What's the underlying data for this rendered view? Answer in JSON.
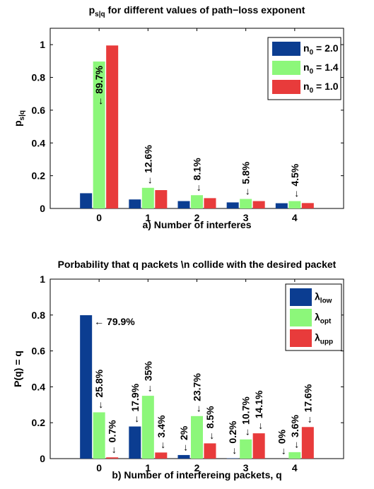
{
  "colors": {
    "blue": "#0b3d91",
    "green": "#8cf77a",
    "red": "#e83b3b"
  },
  "chart_data": [
    {
      "type": "bar",
      "title_main": "p",
      "title_sub": "s|q",
      "title_rest": " for different values of path−loss exponent",
      "xlabel": "a) Number of interferes",
      "ylabel_main": "p",
      "ylabel_sub": "s|q",
      "ylim": [
        0,
        1.1
      ],
      "yticks": [
        "0",
        "0.2",
        "0.4",
        "0.6",
        "0.8",
        "1"
      ],
      "ytick_values": [
        0,
        0.2,
        0.4,
        0.6,
        0.8,
        1
      ],
      "categories": [
        "0",
        "1",
        "2",
        "3",
        "4"
      ],
      "legend_position": "top-right",
      "series": [
        {
          "legend_main": "n",
          "legend_sub": "0",
          "legend_rest": " = 2.0",
          "color": "blue",
          "values": [
            0.093,
            0.055,
            0.045,
            0.037,
            0.032
          ]
        },
        {
          "legend_main": "n",
          "legend_sub": "0",
          "legend_rest": " = 1.4",
          "color": "green",
          "values": [
            0.897,
            0.126,
            0.081,
            0.058,
            0.045
          ]
        },
        {
          "legend_main": "n",
          "legend_sub": "0",
          "legend_rest": " = 1.0",
          "color": "red",
          "values": [
            0.995,
            0.112,
            0.063,
            0.045,
            0.033
          ]
        }
      ],
      "annotations": [
        {
          "category": 0,
          "series": 1,
          "text": "← 89.7%",
          "inside": true
        },
        {
          "category": 1,
          "series": 1,
          "text": "← 12.6%"
        },
        {
          "category": 2,
          "series": 1,
          "text": "← 8.1%"
        },
        {
          "category": 3,
          "series": 1,
          "text": "← 5.8%"
        },
        {
          "category": 4,
          "series": 1,
          "text": "← 4.5%"
        }
      ]
    },
    {
      "type": "bar",
      "title_main": "Porbability that q packets \\n collide with the desired packet",
      "xlabel": "b) Number of interfereing packets, q",
      "ylabel_main": "P(q) = q",
      "ylim": [
        0,
        1
      ],
      "yticks": [
        "0",
        "0.2",
        "0.4",
        "0.6",
        "0.8",
        "1"
      ],
      "ytick_values": [
        0,
        0.2,
        0.4,
        0.6,
        0.8,
        1
      ],
      "categories": [
        "0",
        "1",
        "2",
        "3",
        "4"
      ],
      "legend_position": "top-right",
      "series": [
        {
          "legend_main": "λ",
          "legend_sub": "low",
          "color": "blue",
          "values": [
            0.799,
            0.179,
            0.02,
            0.002,
            0.0
          ]
        },
        {
          "legend_main": "λ",
          "legend_sub": "opt",
          "color": "green",
          "values": [
            0.258,
            0.35,
            0.237,
            0.107,
            0.036
          ]
        },
        {
          "legend_main": "λ",
          "legend_sub": "upp",
          "color": "red",
          "values": [
            0.007,
            0.034,
            0.085,
            0.141,
            0.176
          ]
        }
      ],
      "annotations": [
        {
          "category": 0,
          "series": 0,
          "text": "← 79.9%",
          "horizontal": true
        },
        {
          "category": 0,
          "series": 1,
          "text": "← 25.8%"
        },
        {
          "category": 0,
          "series": 2,
          "text": "← 0.7%"
        },
        {
          "category": 1,
          "series": 0,
          "text": "← 17.9%"
        },
        {
          "category": 1,
          "series": 1,
          "text": "← 35%"
        },
        {
          "category": 1,
          "series": 2,
          "text": "← 3.4%"
        },
        {
          "category": 2,
          "series": 0,
          "text": "← 2%"
        },
        {
          "category": 2,
          "series": 1,
          "text": "← 23.7%"
        },
        {
          "category": 2,
          "series": 2,
          "text": "← 8.5%"
        },
        {
          "category": 3,
          "series": 0,
          "text": "← 0.2%"
        },
        {
          "category": 3,
          "series": 1,
          "text": "← 10.7%"
        },
        {
          "category": 3,
          "series": 2,
          "text": "← 14.1%"
        },
        {
          "category": 4,
          "series": 0,
          "text": "← 0%"
        },
        {
          "category": 4,
          "series": 1,
          "text": "← 3.6%"
        },
        {
          "category": 4,
          "series": 2,
          "text": "← 17.6%"
        }
      ]
    }
  ]
}
